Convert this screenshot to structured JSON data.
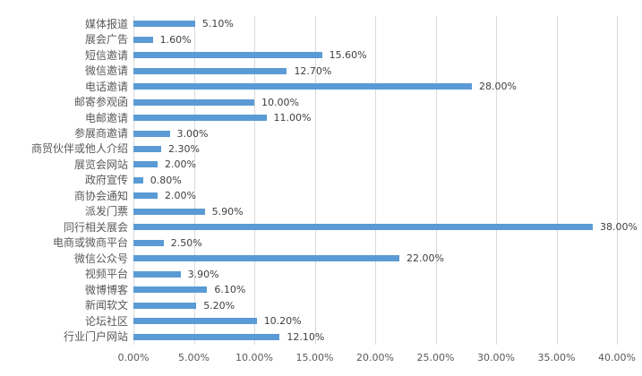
{
  "chart_data": {
    "type": "bar",
    "orientation": "horizontal",
    "title": "",
    "legend": false,
    "grid": true,
    "categories": [
      "媒体报道",
      "展会广告",
      "短信邀请",
      "微信邀请",
      "电话邀请",
      "邮寄参观函",
      "电邮邀请",
      "参展商邀请",
      "商贸伙伴或他人介绍",
      "展览会网站",
      "政府宣传",
      "商协会通知",
      "派发门票",
      "同行相关展会",
      "电商或微商平台",
      "微信公众号",
      "视频平台",
      "微博博客",
      "新闻软文",
      "论坛社区",
      "行业门户网站"
    ],
    "values": [
      5.1,
      1.6,
      15.6,
      12.7,
      28.0,
      10.0,
      11.0,
      3.0,
      2.3,
      2.0,
      0.8,
      2.0,
      5.9,
      38.0,
      2.5,
      22.0,
      3.9,
      6.1,
      5.2,
      10.2,
      12.1
    ],
    "data_labels": [
      "5.10%",
      "1.60%",
      "15.60%",
      "12.70%",
      "28.00%",
      "10.00%",
      "11.00%",
      "3.00%",
      "2.30%",
      "2.00%",
      "0.80%",
      "2.00%",
      "5.90%",
      "38.00%",
      "2.50%",
      "22.00%",
      "3.90%",
      "6.10%",
      "5.20%",
      "10.20%",
      "12.10%"
    ],
    "x_ticks": [
      "0.00%",
      "5.00%",
      "10.00%",
      "15.00%",
      "20.00%",
      "25.00%",
      "30.00%",
      "35.00%",
      "40.00%"
    ],
    "xlim": [
      0,
      40
    ],
    "colors": {
      "bar": "#5b9bd5",
      "gridline": "#d9d9d9",
      "category_label": "#595959",
      "value_label": "#404040",
      "tick_label": "#595959",
      "background": "#ffffff"
    }
  }
}
